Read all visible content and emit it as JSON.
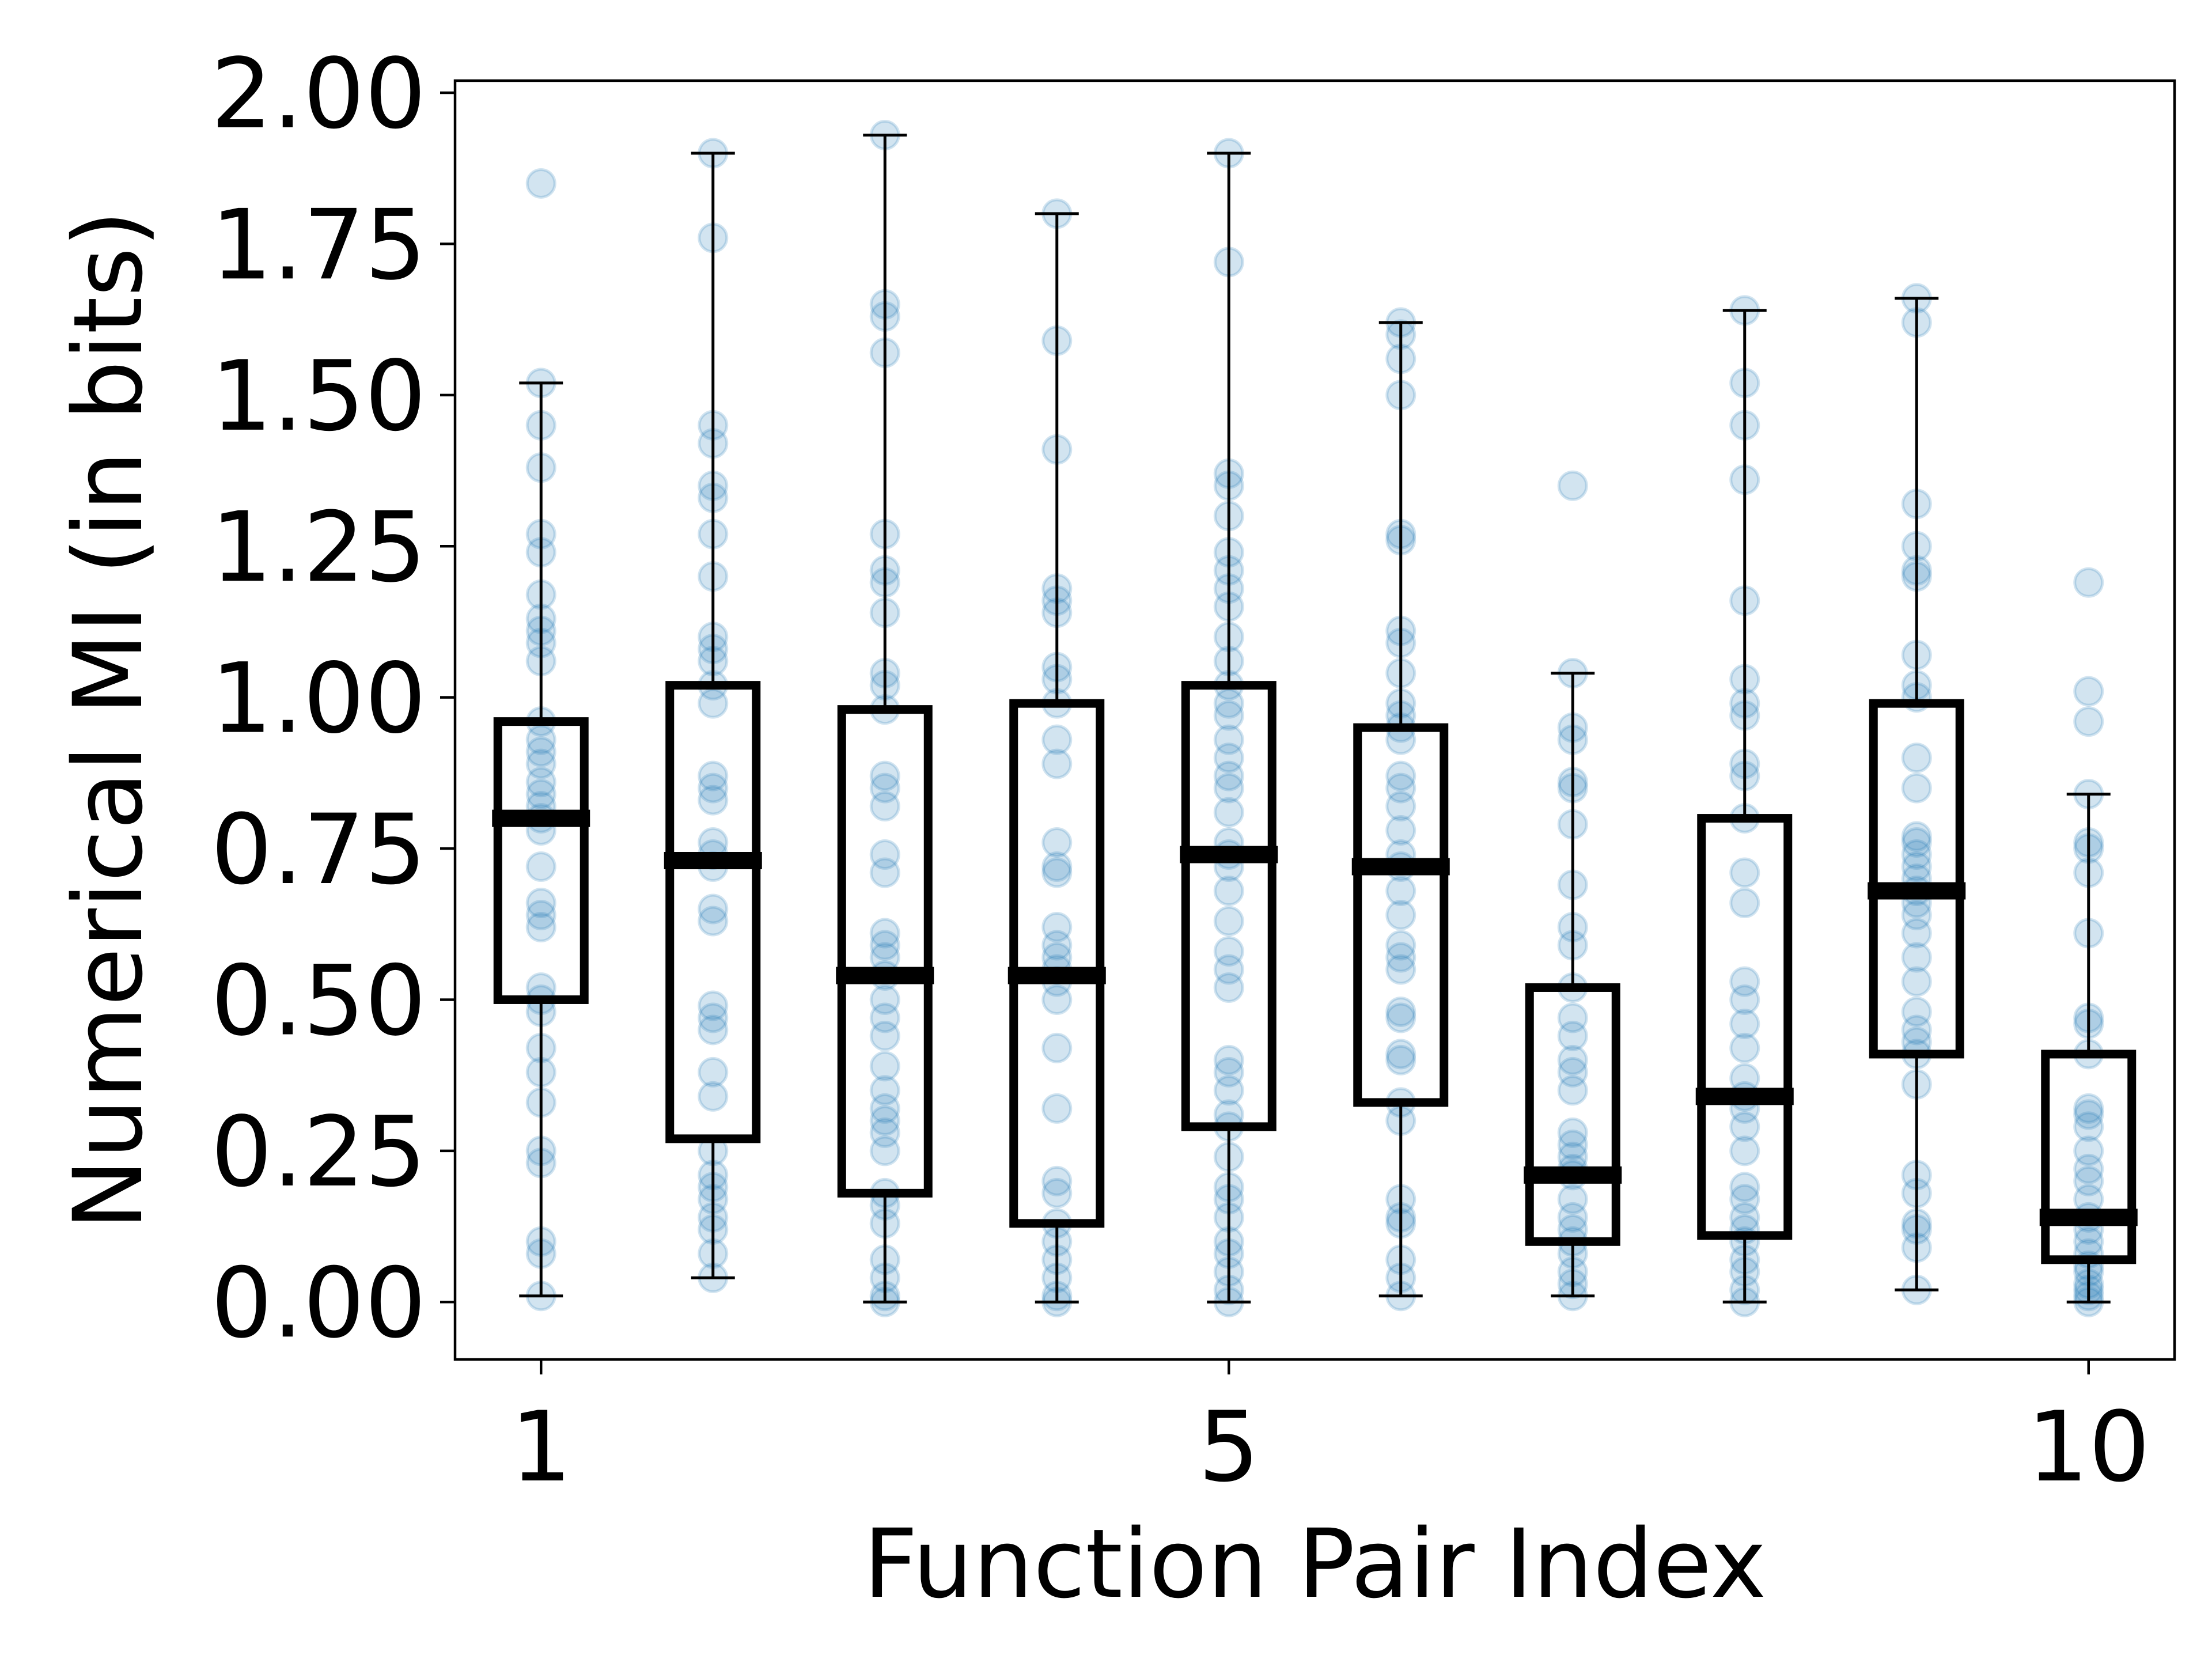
{
  "chart_data": {
    "type": "box",
    "xlabel": "Function Pair Index",
    "ylabel": "Numerical MI (in bits)",
    "ylim": [
      -0.095,
      2.02
    ],
    "xlim": [
      0.5,
      10.5
    ],
    "grid": false,
    "legend": "none",
    "x_ticks": [
      {
        "value": 1,
        "label": "1"
      },
      {
        "value": 5,
        "label": "5"
      },
      {
        "value": 10,
        "label": "10"
      }
    ],
    "y_ticks": [
      {
        "value": 0.0,
        "label": "0.00"
      },
      {
        "value": 0.25,
        "label": "0.25"
      },
      {
        "value": 0.5,
        "label": "0.50"
      },
      {
        "value": 0.75,
        "label": "0.75"
      },
      {
        "value": 1.0,
        "label": "1.00"
      },
      {
        "value": 1.25,
        "label": "1.25"
      },
      {
        "value": 1.5,
        "label": "1.50"
      },
      {
        "value": 1.75,
        "label": "1.75"
      },
      {
        "value": 2.0,
        "label": "2.00"
      }
    ],
    "colors": {
      "points": "#1f77b4",
      "boxes": "#000000",
      "axes": "#000000"
    },
    "boxes": [
      {
        "index": 1,
        "whisker_low": 0.01,
        "q1": 0.5,
        "median": 0.8,
        "q3": 0.96,
        "whisker_high": 1.52
      },
      {
        "index": 2,
        "whisker_low": 0.04,
        "q1": 0.27,
        "median": 0.73,
        "q3": 1.02,
        "whisker_high": 1.9
      },
      {
        "index": 3,
        "whisker_low": 0.0,
        "q1": 0.18,
        "median": 0.54,
        "q3": 0.98,
        "whisker_high": 1.93
      },
      {
        "index": 4,
        "whisker_low": 0.0,
        "q1": 0.13,
        "median": 0.54,
        "q3": 0.99,
        "whisker_high": 1.8
      },
      {
        "index": 5,
        "whisker_low": 0.0,
        "q1": 0.29,
        "median": 0.74,
        "q3": 1.02,
        "whisker_high": 1.9
      },
      {
        "index": 6,
        "whisker_low": 0.01,
        "q1": 0.33,
        "median": 0.72,
        "q3": 0.95,
        "whisker_high": 1.62
      },
      {
        "index": 7,
        "whisker_low": 0.01,
        "q1": 0.1,
        "median": 0.21,
        "q3": 0.52,
        "whisker_high": 1.04
      },
      {
        "index": 8,
        "whisker_low": 0.0,
        "q1": 0.11,
        "median": 0.34,
        "q3": 0.8,
        "whisker_high": 1.64
      },
      {
        "index": 9,
        "whisker_low": 0.02,
        "q1": 0.41,
        "median": 0.68,
        "q3": 0.99,
        "whisker_high": 1.66
      },
      {
        "index": 10,
        "whisker_low": 0.0,
        "q1": 0.07,
        "median": 0.14,
        "q3": 0.41,
        "whisker_high": 0.84
      }
    ],
    "points": [
      {
        "index": 1,
        "values": [
          1.85,
          1.52,
          1.45,
          1.38,
          1.27,
          1.24,
          1.17,
          1.13,
          1.11,
          1.09,
          1.06,
          0.96,
          0.93,
          0.91,
          0.89,
          0.86,
          0.84,
          0.82,
          0.8,
          0.78,
          0.72,
          0.66,
          0.64,
          0.62,
          0.52,
          0.5,
          0.48,
          0.42,
          0.38,
          0.33,
          0.25,
          0.23,
          0.1,
          0.08,
          0.01
        ]
      },
      {
        "index": 2,
        "values": [
          1.9,
          1.76,
          1.45,
          1.42,
          1.35,
          1.33,
          1.27,
          1.2,
          1.1,
          1.08,
          1.06,
          1.02,
          0.99,
          0.87,
          0.85,
          0.83,
          0.76,
          0.74,
          0.72,
          0.65,
          0.63,
          0.49,
          0.47,
          0.45,
          0.38,
          0.34,
          0.25,
          0.21,
          0.19,
          0.17,
          0.14,
          0.12,
          0.08,
          0.04
        ]
      },
      {
        "index": 3,
        "values": [
          1.93,
          1.65,
          1.63,
          1.57,
          1.27,
          1.21,
          1.19,
          1.14,
          1.04,
          1.02,
          0.98,
          0.87,
          0.85,
          0.82,
          0.74,
          0.71,
          0.61,
          0.59,
          0.57,
          0.54,
          0.5,
          0.47,
          0.44,
          0.39,
          0.35,
          0.32,
          0.3,
          0.28,
          0.25,
          0.18,
          0.16,
          0.13,
          0.07,
          0.04,
          0.01,
          0.0
        ]
      },
      {
        "index": 4,
        "values": [
          1.8,
          1.59,
          1.41,
          1.18,
          1.16,
          1.14,
          1.05,
          1.03,
          0.99,
          0.93,
          0.89,
          0.76,
          0.72,
          0.71,
          0.62,
          0.59,
          0.57,
          0.55,
          0.53,
          0.5,
          0.42,
          0.32,
          0.2,
          0.18,
          0.13,
          0.1,
          0.07,
          0.04,
          0.01,
          0.0
        ]
      },
      {
        "index": 5,
        "values": [
          1.9,
          1.72,
          1.37,
          1.35,
          1.3,
          1.24,
          1.21,
          1.18,
          1.15,
          1.1,
          1.06,
          1.02,
          0.99,
          0.97,
          0.93,
          0.9,
          0.87,
          0.85,
          0.81,
          0.76,
          0.74,
          0.72,
          0.68,
          0.63,
          0.58,
          0.55,
          0.52,
          0.4,
          0.38,
          0.35,
          0.31,
          0.29,
          0.24,
          0.19,
          0.17,
          0.14,
          0.1,
          0.08,
          0.05,
          0.02,
          0.0
        ]
      },
      {
        "index": 6,
        "values": [
          1.62,
          1.6,
          1.56,
          1.5,
          1.27,
          1.26,
          1.11,
          1.09,
          1.04,
          0.99,
          0.97,
          0.95,
          0.93,
          0.87,
          0.85,
          0.82,
          0.78,
          0.74,
          0.72,
          0.68,
          0.64,
          0.59,
          0.57,
          0.55,
          0.48,
          0.47,
          0.41,
          0.4,
          0.33,
          0.3,
          0.17,
          0.14,
          0.13,
          0.07,
          0.04,
          0.01
        ]
      },
      {
        "index": 7,
        "values": [
          1.35,
          1.04,
          0.95,
          0.93,
          0.86,
          0.85,
          0.79,
          0.69,
          0.62,
          0.59,
          0.52,
          0.47,
          0.44,
          0.4,
          0.38,
          0.35,
          0.28,
          0.26,
          0.24,
          0.22,
          0.21,
          0.17,
          0.14,
          0.12,
          0.1,
          0.08,
          0.05,
          0.03,
          0.01
        ]
      },
      {
        "index": 8,
        "values": [
          1.64,
          1.52,
          1.45,
          1.36,
          1.16,
          1.03,
          0.99,
          0.97,
          0.89,
          0.87,
          0.8,
          0.71,
          0.66,
          0.53,
          0.5,
          0.46,
          0.42,
          0.37,
          0.34,
          0.32,
          0.29,
          0.25,
          0.19,
          0.17,
          0.14,
          0.12,
          0.1,
          0.07,
          0.05,
          0.02,
          0.0
        ]
      },
      {
        "index": 9,
        "values": [
          1.66,
          1.62,
          1.32,
          1.25,
          1.21,
          1.2,
          1.07,
          1.02,
          1.0,
          0.9,
          0.85,
          0.77,
          0.76,
          0.74,
          0.72,
          0.7,
          0.68,
          0.66,
          0.64,
          0.61,
          0.57,
          0.53,
          0.48,
          0.45,
          0.43,
          0.41,
          0.36,
          0.21,
          0.18,
          0.13,
          0.12,
          0.09,
          0.02
        ]
      },
      {
        "index": 10,
        "values": [
          1.19,
          1.01,
          0.96,
          0.84,
          0.76,
          0.75,
          0.71,
          0.61,
          0.47,
          0.46,
          0.41,
          0.32,
          0.31,
          0.29,
          0.25,
          0.22,
          0.2,
          0.17,
          0.14,
          0.12,
          0.1,
          0.08,
          0.06,
          0.05,
          0.03,
          0.02,
          0.01,
          0.0
        ]
      }
    ]
  }
}
